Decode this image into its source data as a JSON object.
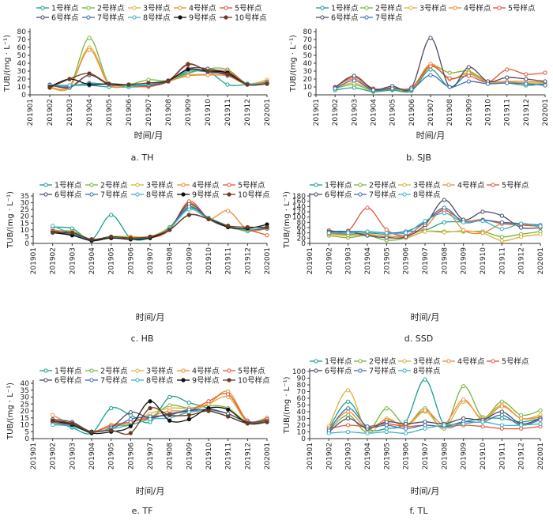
{
  "figure": {
    "x_title": "时间/月",
    "y_title": "TUB/(mg · L⁻¹)",
    "x_ticks": [
      "201901",
      "201902",
      "201903",
      "201904",
      "201905",
      "201906",
      "201907",
      "201908",
      "201909",
      "201910",
      "201911",
      "201912",
      "202001"
    ]
  },
  "colors": {
    "1号样点": "#1a9e8f",
    "2号样点": "#77b43a",
    "3号样点": "#d9b23a",
    "4号样点": "#ef8b33",
    "5号样点": "#e2553c",
    "6号样点": "#4a4a63",
    "7号样点": "#3b6fb5",
    "8号样点": "#3cb3c0",
    "9号样点": "#111111",
    "10号样点": "#6b3b22"
  },
  "chart_data": [
    {
      "type": "line",
      "caption": "a.  TH",
      "ylabel": "TUB/(mg · L⁻¹)",
      "xlabel": "时间/月",
      "ylim": [
        0,
        80
      ],
      "yticks": [
        0,
        10,
        20,
        30,
        40,
        50,
        60,
        70,
        80
      ],
      "x": [
        "201901",
        "201902",
        "201903",
        "201904",
        "201905",
        "201906",
        "201907",
        "201908",
        "201909",
        "201910",
        "201911",
        "201912",
        "202001"
      ],
      "series": [
        {
          "name": "1号样点",
          "values": [
            null,
            12,
            12,
            12,
            10,
            10,
            11,
            18,
            28,
            30,
            13,
            13,
            14
          ]
        },
        {
          "name": "2号样点",
          "values": [
            null,
            10,
            10,
            72,
            14,
            13,
            19,
            18,
            27,
            33,
            32,
            14,
            15
          ]
        },
        {
          "name": "3号样点",
          "values": [
            null,
            9,
            9,
            60,
            14,
            12,
            12,
            17,
            25,
            26,
            28,
            14,
            19
          ]
        },
        {
          "name": "4号样点",
          "values": [
            null,
            10,
            10,
            57,
            13,
            12,
            10,
            17,
            24,
            25,
            24,
            13,
            17
          ]
        },
        {
          "name": "5号样点",
          "values": [
            null,
            12,
            10,
            25,
            13,
            12,
            11,
            17,
            38,
            31,
            30,
            14,
            16
          ]
        },
        {
          "name": "6号样点",
          "values": [
            null,
            13,
            9,
            25,
            13,
            12,
            12,
            17,
            33,
            33,
            27,
            14,
            15
          ]
        },
        {
          "name": "7号样点",
          "values": [
            null,
            12,
            11,
            15,
            13,
            12,
            12,
            18,
            30,
            29,
            25,
            14,
            15
          ]
        },
        {
          "name": "8号样点",
          "values": [
            null,
            12,
            12,
            14,
            13,
            12,
            13,
            18,
            30,
            30,
            26,
            14,
            15
          ]
        },
        {
          "name": "9号样点",
          "values": [
            null,
            10,
            20,
            13,
            14,
            13,
            15,
            18,
            32,
            30,
            28,
            13,
            14
          ]
        },
        {
          "name": "10号样点",
          "values": [
            null,
            9,
            20,
            27,
            14,
            13,
            15,
            18,
            39,
            30,
            26,
            13,
            14
          ]
        }
      ]
    },
    {
      "type": "line",
      "caption": "b.  SJB",
      "ylabel": "TUB/(mg · L⁻¹)",
      "xlabel": "时间/月",
      "ylim": [
        0,
        80
      ],
      "yticks": [
        0,
        10,
        20,
        30,
        40,
        50,
        60,
        70,
        80
      ],
      "x": [
        "201901",
        "201902",
        "201903",
        "201904",
        "201905",
        "201906",
        "201907",
        "201908",
        "201909",
        "201910",
        "201911",
        "201912",
        "202001"
      ],
      "series": [
        {
          "name": "1号样点",
          "values": [
            null,
            6,
            9,
            4,
            6,
            5,
            32,
            10,
            26,
            15,
            15,
            12,
            14
          ]
        },
        {
          "name": "2号样点",
          "values": [
            null,
            8,
            13,
            5,
            7,
            6,
            36,
            28,
            30,
            17,
            16,
            15,
            15
          ]
        },
        {
          "name": "3号样点",
          "values": [
            null,
            9,
            15,
            6,
            8,
            7,
            38,
            20,
            27,
            16,
            16,
            15,
            15
          ]
        },
        {
          "name": "4号样点",
          "values": [
            null,
            10,
            20,
            7,
            9,
            8,
            39,
            20,
            28,
            17,
            17,
            17,
            16
          ]
        },
        {
          "name": "5号样点",
          "values": [
            null,
            10,
            22,
            8,
            9,
            9,
            36,
            21,
            24,
            16,
            32,
            26,
            28
          ]
        },
        {
          "name": "6号样点",
          "values": [
            null,
            9,
            24,
            7,
            11,
            9,
            72,
            10,
            35,
            17,
            22,
            20,
            17
          ]
        },
        {
          "name": "7号样点",
          "values": [
            null,
            8,
            18,
            6,
            8,
            7,
            25,
            10,
            17,
            14,
            15,
            14,
            12
          ]
        }
      ]
    },
    {
      "type": "line",
      "caption": "c.  HB",
      "ylabel": "TUB/(mg · L⁻¹)",
      "xlabel": "时间/月",
      "ylim": [
        0,
        35
      ],
      "yticks": [
        0,
        5,
        10,
        15,
        20,
        25,
        30,
        35
      ],
      "x": [
        "201901",
        "201902",
        "201903",
        "201904",
        "201905",
        "201906",
        "201907",
        "201908",
        "201909",
        "201910",
        "201911",
        "201912",
        "202001"
      ],
      "series": [
        {
          "name": "1号样点",
          "values": [
            null,
            12,
            11,
            3,
            21,
            4,
            4,
            12,
            26,
            19,
            13,
            9,
            11
          ]
        },
        {
          "name": "2号样点",
          "values": [
            null,
            9,
            9,
            3,
            5,
            5,
            5,
            12,
            27,
            18,
            13,
            9,
            12
          ]
        },
        {
          "name": "3号样点",
          "values": [
            null,
            8,
            8,
            3,
            5,
            5,
            5,
            11,
            28,
            18,
            13,
            10,
            12
          ]
        },
        {
          "name": "4号样点",
          "values": [
            null,
            10,
            8,
            3,
            4,
            4,
            5,
            11,
            30,
            18,
            24,
            10,
            11
          ]
        },
        {
          "name": "5号样点",
          "values": [
            null,
            9,
            6,
            3,
            4,
            4,
            4,
            10,
            31,
            18,
            12,
            10,
            6
          ]
        },
        {
          "name": "6号样点",
          "values": [
            null,
            9,
            7,
            3,
            4,
            4,
            4,
            11,
            29,
            18,
            12,
            10,
            11
          ]
        },
        {
          "name": "7号样点",
          "values": [
            null,
            8,
            6,
            3,
            4,
            4,
            4,
            11,
            27,
            18,
            12,
            10,
            12
          ]
        },
        {
          "name": "8号样点",
          "values": [
            null,
            13,
            7,
            2,
            4,
            4,
            4,
            11,
            25,
            18,
            12,
            10,
            12
          ]
        },
        {
          "name": "9号样点",
          "values": [
            null,
            8,
            6,
            2,
            4,
            3,
            4,
            10,
            21,
            18,
            12,
            11,
            14
          ]
        },
        {
          "name": "10号样点",
          "values": [
            null,
            8,
            8,
            3,
            5,
            4,
            5,
            10,
            21,
            18,
            13,
            12,
            12
          ]
        }
      ]
    },
    {
      "type": "line",
      "caption": "d.  SSD",
      "ylabel": "TUB/(mg · L⁻¹)",
      "xlabel": "时间/月",
      "ylim": [
        0,
        180
      ],
      "yticks": [
        0,
        20,
        40,
        60,
        80,
        100,
        120,
        140,
        160,
        180
      ],
      "x": [
        "201901",
        "201902",
        "201903",
        "201904",
        "201905",
        "201906",
        "201907",
        "201908",
        "201909",
        "201910",
        "201911",
        "201912",
        "202001"
      ],
      "series": [
        {
          "name": "1号样点",
          "values": [
            null,
            40,
            35,
            40,
            35,
            45,
            50,
            80,
            82,
            88,
            80,
            75,
            65
          ]
        },
        {
          "name": "2号样点",
          "values": [
            null,
            30,
            22,
            30,
            12,
            20,
            45,
            45,
            45,
            45,
            25,
            35,
            45
          ]
        },
        {
          "name": "3号样点",
          "values": [
            null,
            35,
            30,
            35,
            25,
            20,
            45,
            42,
            48,
            40,
            10,
            25,
            35
          ]
        },
        {
          "name": "4号样点",
          "values": [
            null,
            38,
            32,
            32,
            28,
            28,
            60,
            130,
            50,
            40,
            75,
            70,
            65
          ]
        },
        {
          "name": "5号样点",
          "values": [
            null,
            50,
            48,
            135,
            52,
            30,
            80,
            125,
            85,
            90,
            75,
            70,
            65
          ]
        },
        {
          "name": "6号样点",
          "values": [
            null,
            45,
            45,
            30,
            22,
            25,
            70,
            165,
            90,
            120,
            105,
            60,
            60
          ]
        },
        {
          "name": "7号样点",
          "values": [
            null,
            42,
            45,
            45,
            40,
            45,
            80,
            135,
            80,
            88,
            80,
            75,
            70
          ]
        },
        {
          "name": "8号样点",
          "values": [
            null,
            40,
            40,
            45,
            40,
            40,
            85,
            115,
            80,
            85,
            55,
            75,
            65
          ]
        }
      ]
    },
    {
      "type": "line",
      "caption": "e.  TF",
      "ylabel": "TUB/(mg · L⁻¹)",
      "xlabel": "时间/月",
      "ylim": [
        0,
        40
      ],
      "yticks": [
        0,
        5,
        10,
        15,
        20,
        25,
        30,
        35,
        40
      ],
      "x": [
        "201901",
        "201902",
        "201903",
        "201904",
        "201905",
        "201906",
        "201907",
        "201908",
        "201909",
        "201910",
        "201911",
        "201912",
        "202001"
      ],
      "series": [
        {
          "name": "1号样点",
          "values": [
            null,
            13,
            8,
            4,
            22,
            17,
            12,
            30,
            26,
            22,
            18,
            12,
            12
          ]
        },
        {
          "name": "2号样点",
          "values": [
            null,
            12,
            11,
            5,
            9,
            10,
            15,
            24,
            22,
            24,
            22,
            12,
            15
          ]
        },
        {
          "name": "3号样点",
          "values": [
            null,
            11,
            9,
            5,
            9,
            11,
            18,
            22,
            22,
            25,
            30,
            12,
            15
          ]
        },
        {
          "name": "4号样点",
          "values": [
            null,
            17,
            10,
            5,
            10,
            12,
            16,
            20,
            20,
            25,
            34,
            13,
            15
          ]
        },
        {
          "name": "5号样点",
          "values": [
            null,
            12,
            10,
            5,
            9,
            12,
            15,
            18,
            20,
            27,
            32,
            13,
            14
          ]
        },
        {
          "name": "6号样点",
          "values": [
            null,
            14,
            12,
            5,
            8,
            19,
            15,
            18,
            20,
            21,
            18,
            12,
            13
          ]
        },
        {
          "name": "7号样点",
          "values": [
            null,
            12,
            9,
            5,
            7,
            14,
            16,
            17,
            21,
            20,
            16,
            11,
            12
          ]
        },
        {
          "name": "8号样点",
          "values": [
            null,
            10,
            9,
            5,
            7,
            10,
            14,
            15,
            19,
            20,
            16,
            11,
            12
          ]
        },
        {
          "name": "9号样点",
          "values": [
            null,
            13,
            10,
            4,
            5,
            9,
            27,
            13,
            14,
            22,
            21,
            11,
            12
          ]
        },
        {
          "name": "10号样点",
          "values": [
            null,
            13,
            11,
            5,
            6,
            4,
            22,
            17,
            17,
            20,
            16,
            11,
            12
          ]
        }
      ]
    },
    {
      "type": "line",
      "caption": "f.  TL",
      "ylabel": "TUB/(mg · L⁻¹)",
      "xlabel": "时间/月",
      "ylim": [
        0,
        100
      ],
      "yticks": [
        0,
        10,
        20,
        30,
        40,
        50,
        60,
        70,
        80,
        90,
        100
      ],
      "x": [
        "201901",
        "201902",
        "201903",
        "201904",
        "201905",
        "201906",
        "201907",
        "201908",
        "201909",
        "201910",
        "201911",
        "201912",
        "202001"
      ],
      "series": [
        {
          "name": "1号样点",
          "values": [
            null,
            15,
            55,
            15,
            15,
            25,
            88,
            20,
            25,
            30,
            30,
            25,
            30
          ]
        },
        {
          "name": "2号样点",
          "values": [
            null,
            12,
            35,
            10,
            45,
            20,
            45,
            15,
            78,
            32,
            55,
            35,
            42
          ]
        },
        {
          "name": "3号样点",
          "values": [
            null,
            18,
            72,
            10,
            30,
            18,
            40,
            15,
            55,
            30,
            50,
            30,
            35
          ]
        },
        {
          "name": "4号样点",
          "values": [
            null,
            15,
            40,
            15,
            28,
            20,
            42,
            22,
            58,
            28,
            48,
            30,
            32
          ]
        },
        {
          "name": "5号样点",
          "values": [
            null,
            15,
            20,
            18,
            22,
            18,
            20,
            18,
            20,
            18,
            15,
            15,
            18
          ]
        },
        {
          "name": "6号样点",
          "values": [
            null,
            10,
            30,
            15,
            25,
            22,
            25,
            22,
            30,
            28,
            40,
            22,
            30
          ]
        },
        {
          "name": "7号样点",
          "values": [
            null,
            12,
            45,
            18,
            20,
            15,
            20,
            18,
            25,
            25,
            35,
            20,
            28
          ]
        },
        {
          "name": "8号样点",
          "values": [
            null,
            8,
            10,
            8,
            10,
            8,
            15,
            20,
            22,
            25,
            20,
            20,
            22
          ]
        }
      ]
    }
  ]
}
